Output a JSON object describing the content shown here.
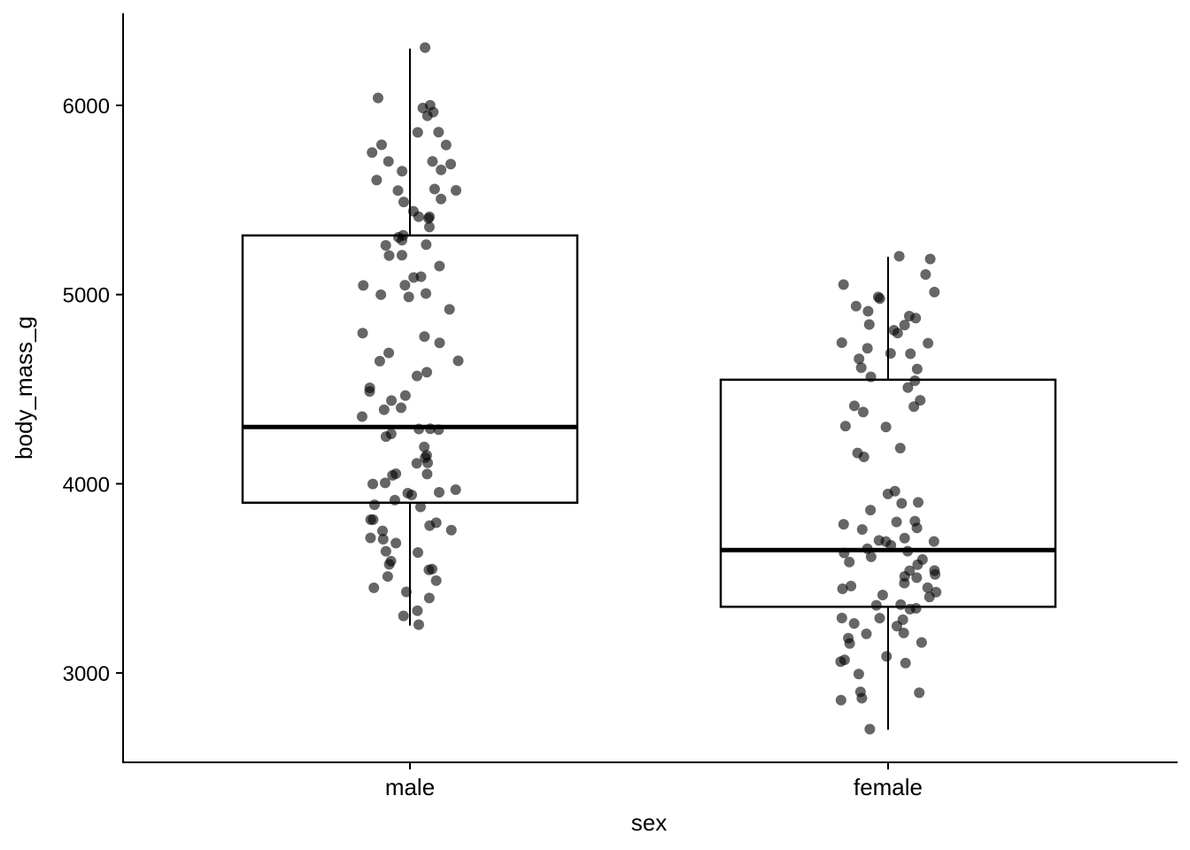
{
  "chart_data": {
    "type": "boxplot",
    "title": "",
    "xlabel": "sex",
    "ylabel": "body_mass_g",
    "ylim": [
      2560,
      6480
    ],
    "yticks": [
      3000,
      4000,
      5000,
      6000
    ],
    "categories": [
      "male",
      "female"
    ],
    "grid": false,
    "point_color": "#000000",
    "point_alpha": 0.6,
    "boxes": [
      {
        "category": "male",
        "min": 3250,
        "q1": 3900,
        "median": 4300,
        "q3": 5312.5,
        "max": 6300
      },
      {
        "category": "female",
        "min": 2700,
        "q1": 3350,
        "median": 3650,
        "q3": 4550,
        "max": 5200
      }
    ],
    "points": {
      "male": [
        6300,
        6000,
        5950,
        6050,
        6010,
        5960,
        5850,
        5850,
        5800,
        5800,
        5750,
        5700,
        5700,
        5700,
        5650,
        5650,
        5600,
        5550,
        5550,
        5550,
        5500,
        5500,
        5450,
        5400,
        5400,
        5400,
        5350,
        5300,
        5300,
        5300,
        5250,
        5250,
        5200,
        5200,
        5150,
        5100,
        5100,
        5050,
        5050,
        5000,
        5000,
        5000,
        4925,
        4800,
        4775,
        4750,
        4700,
        4650,
        4650,
        4600,
        4575,
        4500,
        4500,
        4475,
        4450,
        4400,
        4400,
        4350,
        4300,
        4300,
        4300,
        4250,
        4250,
        4200,
        4150,
        4150,
        4100,
        4100,
        4050,
        4050,
        4050,
        4000,
        4000,
        3975,
        3950,
        3950,
        3950,
        3900,
        3900,
        3875,
        3800,
        3800,
        3800,
        3775,
        3750,
        3750,
        3725,
        3700,
        3700,
        3650,
        3650,
        3600,
        3575,
        3550,
        3550,
        3500,
        3475,
        3450,
        3425,
        3400,
        3325,
        3300,
        3250
      ],
      "female": [
        5200,
        5200,
        5100,
        5050,
        5000,
        5000,
        4975,
        4950,
        4925,
        4900,
        4875,
        4850,
        4850,
        4800,
        4800,
        4750,
        4750,
        4725,
        4700,
        4700,
        4650,
        4625,
        4600,
        4575,
        4550,
        4500,
        4450,
        4400,
        4400,
        4375,
        4300,
        4300,
        4200,
        4150,
        4150,
        3950,
        3950,
        3900,
        3900,
        3850,
        3800,
        3800,
        3800,
        3775,
        3750,
        3725,
        3700,
        3700,
        3700,
        3675,
        3650,
        3650,
        3625,
        3600,
        3600,
        3600,
        3575,
        3550,
        3550,
        3525,
        3500,
        3500,
        3475,
        3450,
        3450,
        3450,
        3425,
        3400,
        3400,
        3375,
        3350,
        3350,
        3325,
        3300,
        3300,
        3275,
        3250,
        3250,
        3200,
        3200,
        3175,
        3150,
        3150,
        3100,
        3075,
        3050,
        3050,
        3000,
        2900,
        2900,
        2875,
        2850,
        2700
      ]
    }
  }
}
